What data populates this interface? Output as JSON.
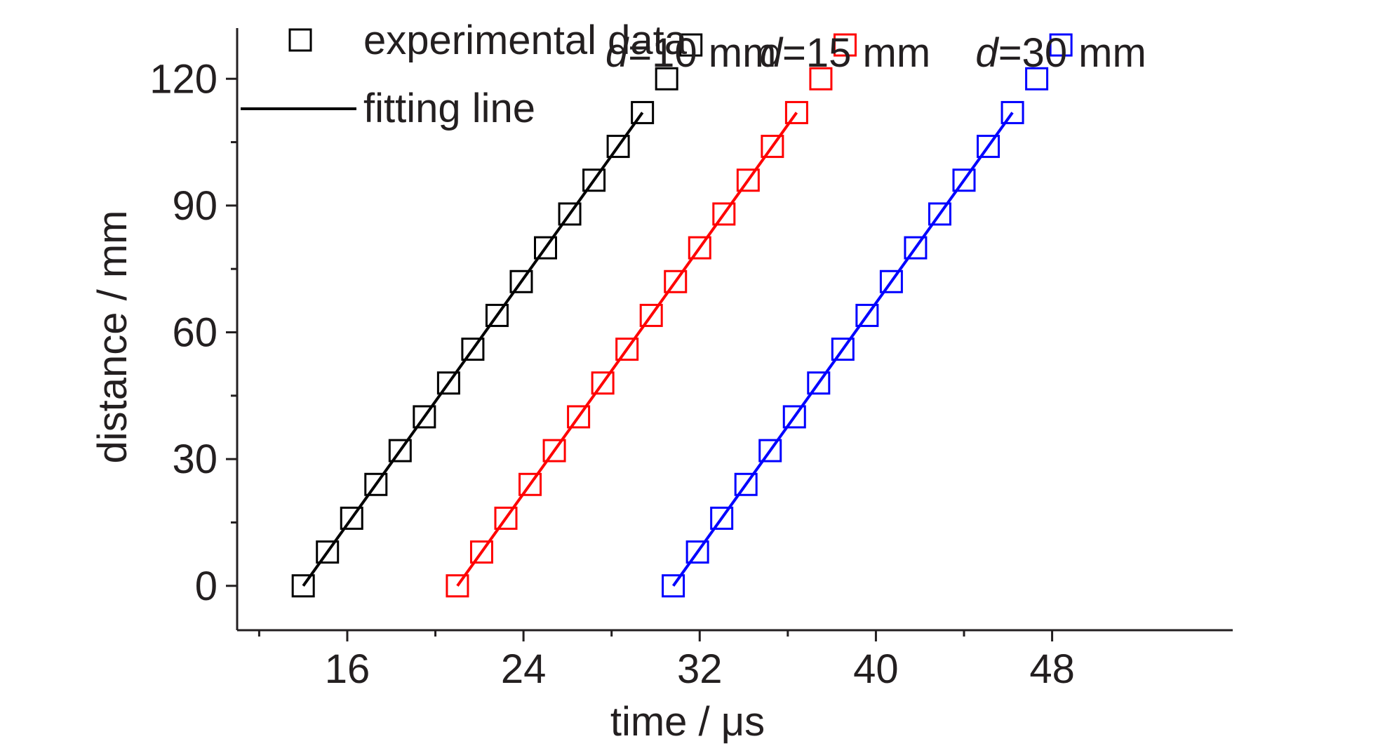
{
  "chart_data": {
    "type": "scatter",
    "xlabel": "time / μs",
    "ylabel": "distance / mm",
    "xlim": [
      11,
      56.2
    ],
    "ylim": [
      -10.5,
      132
    ],
    "xticks": [
      16,
      24,
      32,
      40,
      48
    ],
    "yticks": [
      0,
      30,
      60,
      90,
      120
    ],
    "legend": {
      "position": "top-left",
      "entries": [
        {
          "marker": "open-square",
          "label": "experimental data"
        },
        {
          "marker": "line",
          "label": "fitting line"
        }
      ]
    },
    "series": [
      {
        "name": "d=10 mm",
        "label_italic": "d",
        "label_rest": "=10 mm",
        "color": "#000000",
        "x": [
          14.0,
          15.1,
          16.2,
          17.3,
          18.4,
          19.5,
          20.6,
          21.7,
          22.8,
          23.9,
          25.0,
          26.1,
          27.2,
          28.3,
          29.4,
          30.5,
          31.6
        ],
        "y": [
          0,
          8,
          16,
          24,
          32,
          40,
          48,
          56,
          64,
          72,
          80,
          88,
          96,
          104,
          112,
          120,
          128
        ],
        "fit": {
          "x": [
            14.0,
            29.4
          ],
          "y": [
            0,
            112
          ]
        }
      },
      {
        "name": "d=15 mm",
        "label_italic": "d",
        "label_rest": "=15 mm",
        "color": "#ff0000",
        "x": [
          21.0,
          22.1,
          23.2,
          24.3,
          25.4,
          26.5,
          27.6,
          28.7,
          29.8,
          30.9,
          32.0,
          33.1,
          34.2,
          35.3,
          36.4,
          37.5,
          38.6
        ],
        "y": [
          0,
          8,
          16,
          24,
          32,
          40,
          48,
          56,
          64,
          72,
          80,
          88,
          96,
          104,
          112,
          120,
          128
        ],
        "fit": {
          "x": [
            21.0,
            36.4
          ],
          "y": [
            0,
            112
          ]
        }
      },
      {
        "name": "d=30 mm",
        "label_italic": "d",
        "label_rest": "=30 mm",
        "color": "#0000ff",
        "x": [
          30.8,
          31.9,
          33.0,
          34.1,
          35.2,
          36.3,
          37.4,
          38.5,
          39.6,
          40.7,
          41.8,
          42.9,
          44.0,
          45.1,
          46.2,
          47.3,
          48.4
        ],
        "y": [
          0,
          8,
          16,
          24,
          32,
          40,
          48,
          56,
          64,
          72,
          80,
          88,
          96,
          104,
          112,
          120,
          128
        ],
        "fit": {
          "x": [
            30.8,
            46.2
          ],
          "y": [
            0,
            112
          ]
        }
      }
    ],
    "grid": false
  }
}
